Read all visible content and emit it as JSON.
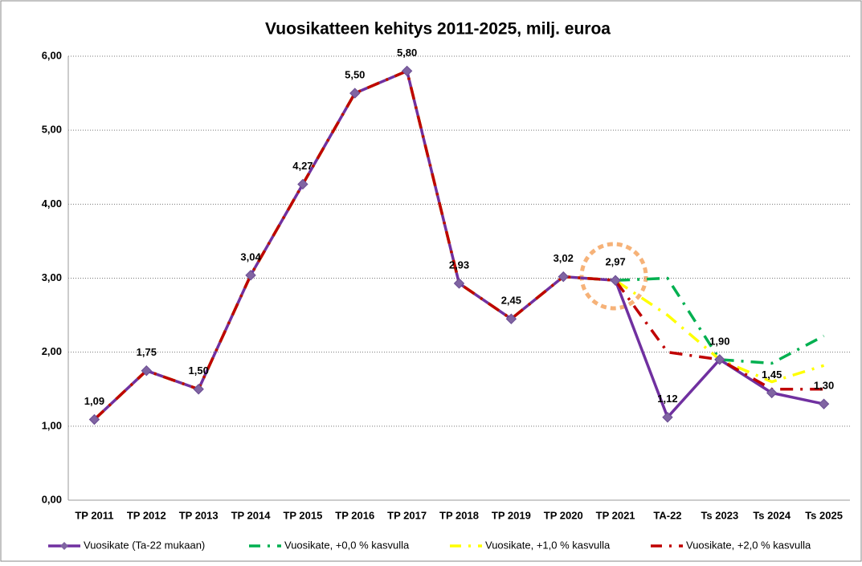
{
  "chart_data": {
    "type": "line",
    "title": "Vuosikatteen kehitys 2011-2025, milj. euroa",
    "categories": [
      "TP 2011",
      "TP 2012",
      "TP 2013",
      "TP 2014",
      "TP 2015",
      "TP 2016",
      "TP 2017",
      "TP 2018",
      "TP 2019",
      "TP 2020",
      "TP 2021",
      "TA-22",
      "Ts 2023",
      "Ts 2024",
      "Ts 2025"
    ],
    "series": [
      {
        "name": "Vuosikate (Ta-22 mukaan)",
        "color": "#7030a0",
        "linestyle": "solid",
        "marker": "diamond",
        "values": [
          1.09,
          1.75,
          1.5,
          3.04,
          4.27,
          5.5,
          5.8,
          2.93,
          2.45,
          3.02,
          2.97,
          1.12,
          1.9,
          1.45,
          1.3
        ],
        "value_labels": [
          "1,09",
          "1,75",
          "1,50",
          "3,04",
          "4,27",
          "5,50",
          "5,80",
          "2,93",
          "2,45",
          "3,02",
          "2,97",
          "1,12",
          "1,90",
          "1,45",
          "1,30"
        ]
      },
      {
        "name": "Vuosikate, +0,0 % kasvulla",
        "color": "#00b050",
        "linestyle": "dashdot",
        "values": [
          1.09,
          1.75,
          1.5,
          3.04,
          4.27,
          5.5,
          5.8,
          2.93,
          2.45,
          3.02,
          2.97,
          3.0,
          1.9,
          1.85,
          2.22
        ]
      },
      {
        "name": "Vuosikate, +1,0 % kasvulla",
        "color": "#ffff00",
        "linestyle": "dashdot",
        "values": [
          1.09,
          1.75,
          1.5,
          3.04,
          4.27,
          5.5,
          5.8,
          2.93,
          2.45,
          3.02,
          2.97,
          2.5,
          1.9,
          1.6,
          1.82
        ]
      },
      {
        "name": "Vuosikate, +2,0 % kasvulla",
        "color": "#c00000",
        "linestyle": "dashdot",
        "values": [
          1.09,
          1.75,
          1.5,
          3.04,
          4.27,
          5.5,
          5.8,
          2.93,
          2.45,
          3.02,
          2.97,
          2.0,
          1.9,
          1.5,
          1.5
        ]
      }
    ],
    "ylim": [
      0,
      6
    ],
    "yticks": [
      {
        "value": 0,
        "label": "0,00"
      },
      {
        "value": 1,
        "label": "1,00"
      },
      {
        "value": 2,
        "label": "2,00"
      },
      {
        "value": 3,
        "label": "3,00"
      },
      {
        "value": 4,
        "label": "4,00"
      },
      {
        "value": 5,
        "label": "5,00"
      },
      {
        "value": 6,
        "label": "6,00"
      }
    ],
    "grid": true,
    "legend": "bottom"
  }
}
